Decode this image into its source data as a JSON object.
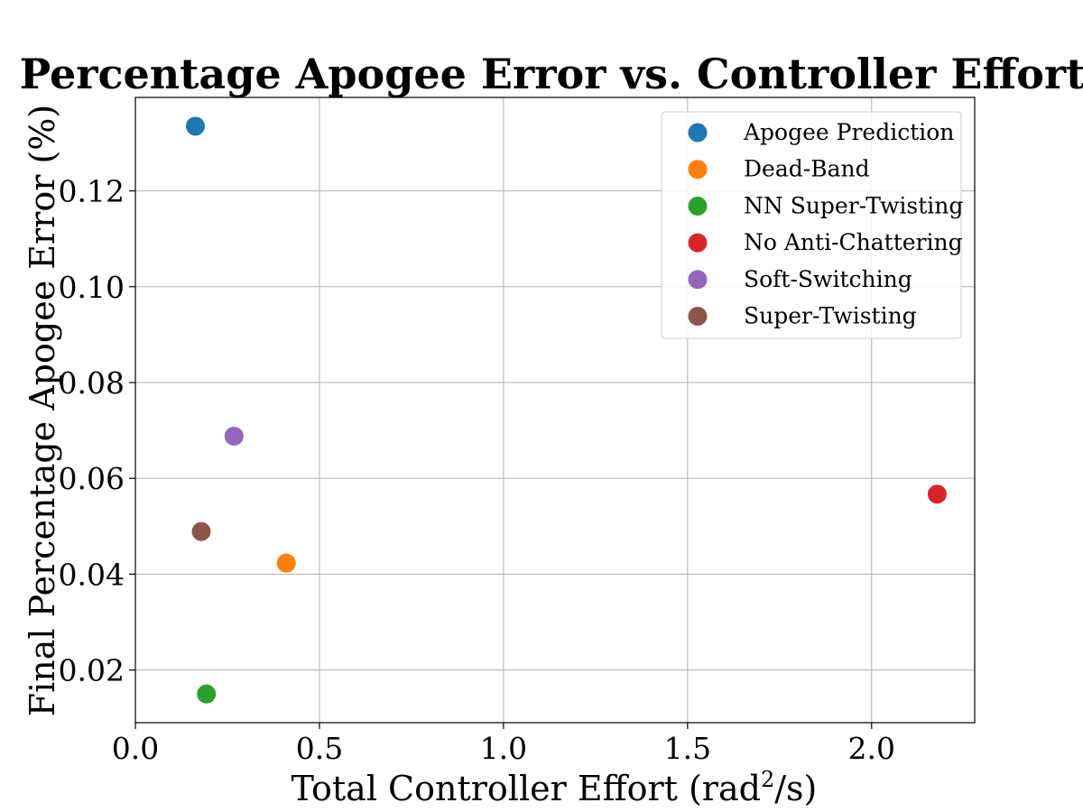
{
  "chart_data": {
    "type": "scatter",
    "title": "Percentage Apogee Error vs. Controller Effort",
    "xlabel": {
      "prefix": "Total Controller Effort (rad",
      "sup": "2",
      "suffix": "/s)"
    },
    "ylabel": "Final Percentage Apogee Error (%)",
    "xlim": [
      0.0,
      2.28
    ],
    "ylim": [
      0.009,
      0.1395
    ],
    "xticks": [
      0.0,
      0.5,
      1.0,
      1.5,
      2.0
    ],
    "xtick_labels": [
      "0.0",
      "0.5",
      "1.0",
      "1.5",
      "2.0"
    ],
    "yticks": [
      0.02,
      0.04,
      0.06,
      0.08,
      0.1,
      0.12
    ],
    "ytick_labels": [
      "0.02",
      "0.04",
      "0.06",
      "0.08",
      "0.10",
      "0.12"
    ],
    "grid": true,
    "legend_position": "top-right",
    "series": [
      {
        "name": "Apogee Prediction",
        "color": "#1f77b4",
        "x": 0.163,
        "y": 0.1335
      },
      {
        "name": "Dead-Band",
        "color": "#ff7f0e",
        "x": 0.41,
        "y": 0.0423
      },
      {
        "name": "NN Super-Twisting",
        "color": "#2ca02c",
        "x": 0.193,
        "y": 0.015
      },
      {
        "name": "No Anti-Chattering",
        "color": "#d62728",
        "x": 2.178,
        "y": 0.0567
      },
      {
        "name": "Soft-Switching",
        "color": "#9467bd",
        "x": 0.268,
        "y": 0.0688
      },
      {
        "name": "Super-Twisting",
        "color": "#8c564b",
        "x": 0.179,
        "y": 0.0489
      }
    ]
  }
}
